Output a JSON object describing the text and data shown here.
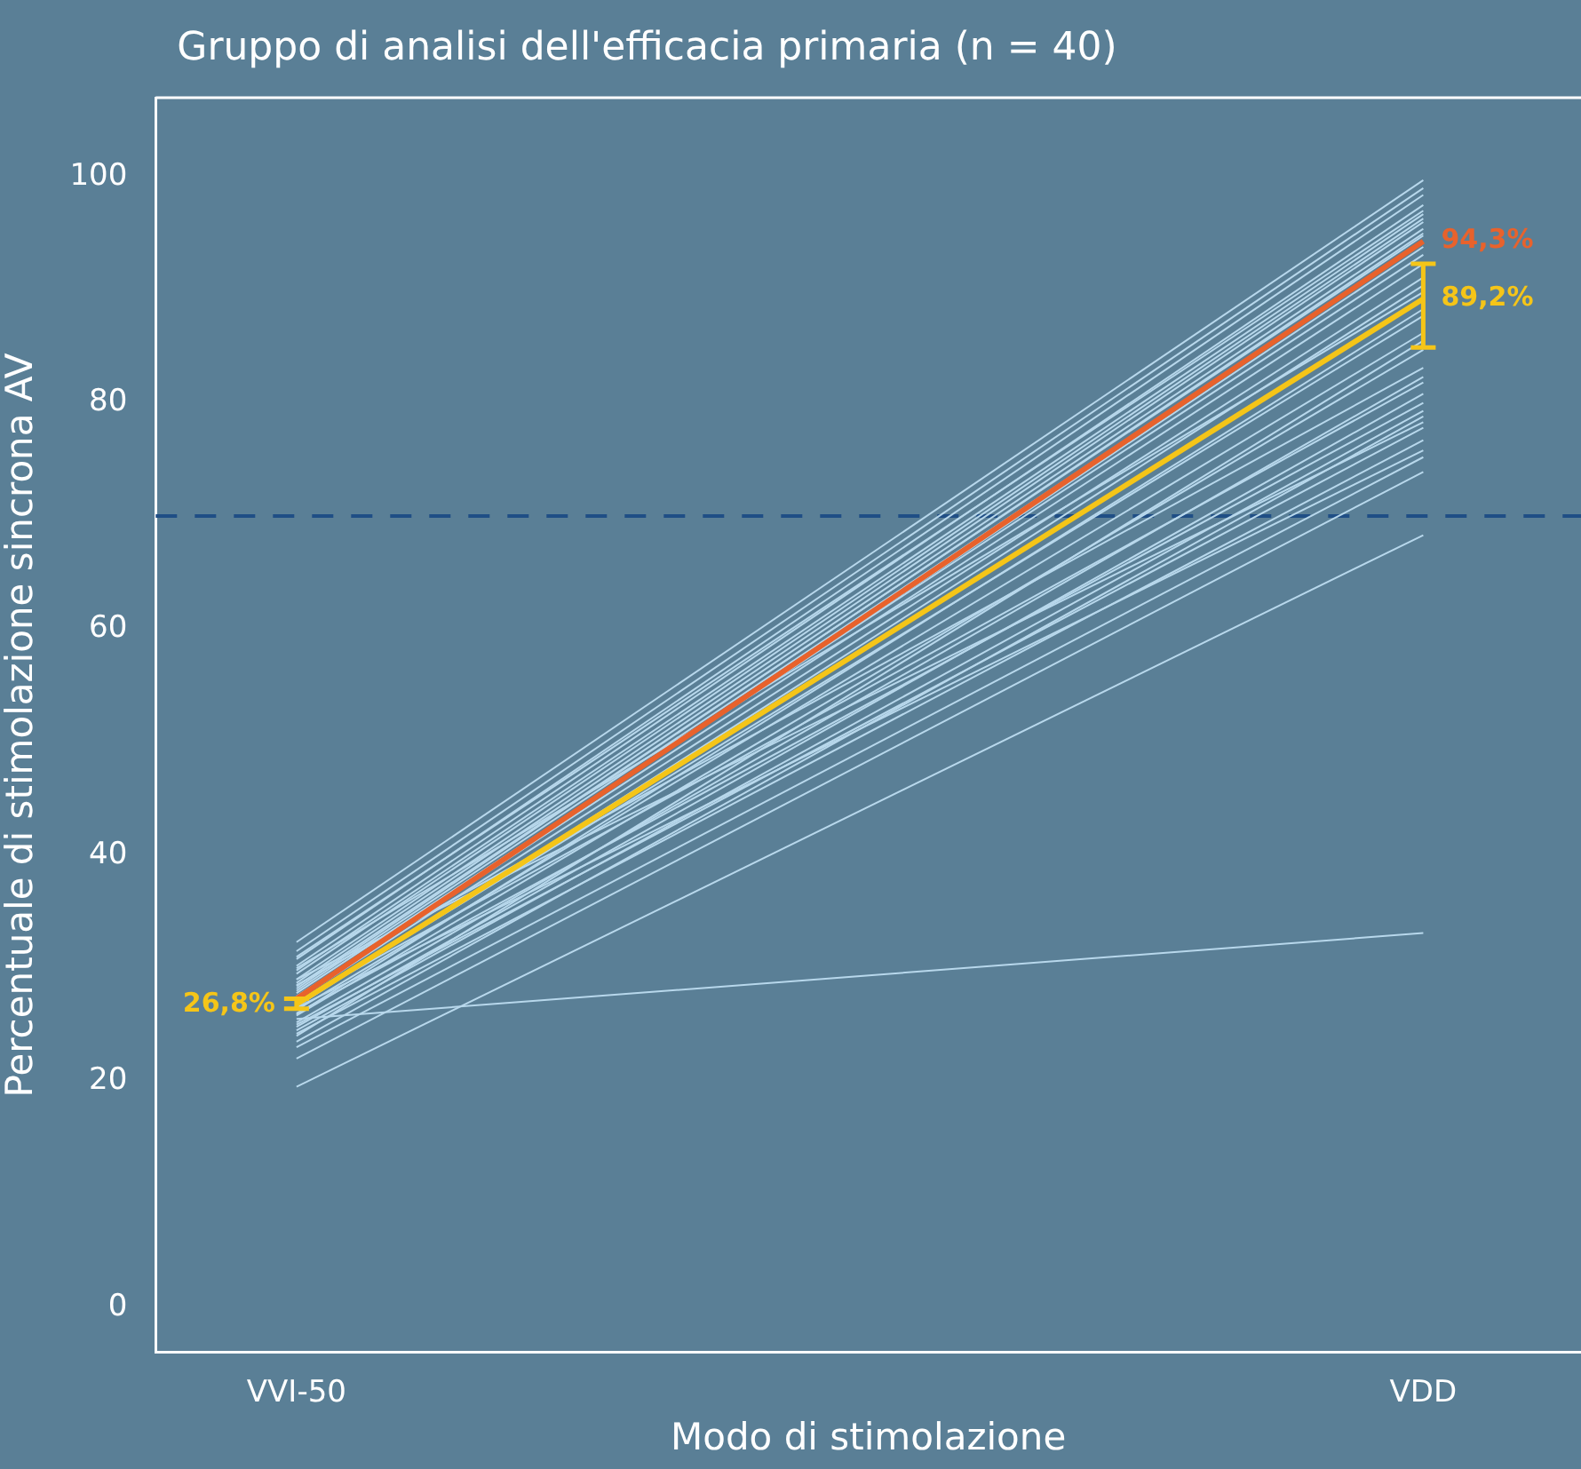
{
  "chart_data": {
    "type": "line",
    "title": "Gruppo di analisi dell'efficacia primaria (n = 40)",
    "xlabel": "Modo di stimolazione",
    "ylabel": "Percentuale di stimolazione sincrona AV",
    "categories": [
      "VVI-50",
      "VDD"
    ],
    "ylim": [
      -4,
      107
    ],
    "yticks": [
      0,
      20,
      40,
      60,
      80,
      100
    ],
    "marker": "none",
    "line_style": "solid",
    "ref_lines": [
      {
        "axis": "y",
        "value": 70,
        "color": "#1f4e85",
        "line_style": "dashed"
      }
    ],
    "series": [
      {
        "color": "#b8d8ec",
        "values": [
          32.3,
          99.7
        ]
      },
      {
        "color": "#b8d8ec",
        "values": [
          31.5,
          99.0
        ]
      },
      {
        "color": "#b8d8ec",
        "values": [
          30.8,
          98.4
        ]
      },
      {
        "color": "#b8d8ec",
        "values": [
          30.2,
          97.5
        ]
      },
      {
        "color": "#b8d8ec",
        "values": [
          29.8,
          96.7
        ]
      },
      {
        "color": "#b8d8ec",
        "values": [
          29.5,
          96.3
        ]
      },
      {
        "color": "#b8d8ec",
        "values": [
          29.0,
          96.0
        ]
      },
      {
        "color": "#b8d8ec",
        "values": [
          28.7,
          95.4
        ]
      },
      {
        "color": "#b8d8ec",
        "values": [
          28.4,
          94.8
        ]
      },
      {
        "color": "#b8d8ec",
        "values": [
          28.0,
          94.2
        ]
      },
      {
        "color": "#b8d8ec",
        "values": [
          27.8,
          93.1
        ]
      },
      {
        "color": "#b8d8ec",
        "values": [
          27.5,
          92.3
        ]
      },
      {
        "color": "#b8d8ec",
        "values": [
          27.2,
          91.1
        ]
      },
      {
        "color": "#b8d8ec",
        "values": [
          30.0,
          89.8
        ]
      },
      {
        "color": "#b8d8ec",
        "values": [
          26.8,
          87.7
        ]
      },
      {
        "color": "#b8d8ec",
        "values": [
          26.3,
          86.2
        ]
      },
      {
        "color": "#b8d8ec",
        "values": [
          25.8,
          84.7
        ]
      },
      {
        "color": "#b8d8ec",
        "values": [
          28.5,
          83.1
        ]
      },
      {
        "color": "#b8d8ec",
        "values": [
          25.2,
          82.3
        ]
      },
      {
        "color": "#b8d8ec",
        "values": [
          27.0,
          81.8
        ]
      },
      {
        "color": "#b8d8ec",
        "values": [
          24.8,
          80.8
        ]
      },
      {
        "color": "#b8d8ec",
        "values": [
          26.0,
          80.0
        ]
      },
      {
        "color": "#b8d8ec",
        "values": [
          24.5,
          79.3
        ]
      },
      {
        "color": "#b8d8ec",
        "values": [
          29.0,
          78.3
        ]
      },
      {
        "color": "#b8d8ec",
        "values": [
          25.0,
          77.8
        ]
      },
      {
        "color": "#b8d8ec",
        "values": [
          24.2,
          76.7
        ]
      },
      {
        "color": "#b8d8ec",
        "values": [
          26.5,
          75.8
        ]
      },
      {
        "color": "#b8d8ec",
        "values": [
          23.0,
          75.2
        ]
      },
      {
        "color": "#b8d8ec",
        "values": [
          22.0,
          73.9
        ]
      },
      {
        "color": "#b8d8ec",
        "values": [
          19.5,
          68.3
        ]
      },
      {
        "color": "#b8d8ec",
        "values": [
          25.5,
          33.1
        ]
      },
      {
        "color": "#b8d8ec",
        "values": [
          31.0,
          97.0
        ]
      },
      {
        "color": "#b8d8ec",
        "values": [
          28.2,
          95.0
        ]
      },
      {
        "color": "#b8d8ec",
        "values": [
          27.4,
          93.8
        ]
      },
      {
        "color": "#b8d8ec",
        "values": [
          26.6,
          90.4
        ]
      },
      {
        "color": "#b8d8ec",
        "values": [
          25.9,
          88.3
        ]
      },
      {
        "color": "#b8d8ec",
        "values": [
          24.0,
          85.5
        ]
      },
      {
        "color": "#b8d8ec",
        "values": [
          23.5,
          78.8
        ]
      },
      {
        "color": "#f5c518",
        "values": [
          26.8,
          89.2
        ],
        "errors": [
          [
            26.4,
            27.3
          ],
          [
            84.9,
            92.3
          ]
        ],
        "value_labels": [
          "26,8%",
          "89,2%"
        ]
      },
      {
        "color": "#e8622c",
        "values": [
          27.3,
          94.3
        ],
        "value_labels": [
          null,
          "94,3%"
        ]
      }
    ]
  }
}
